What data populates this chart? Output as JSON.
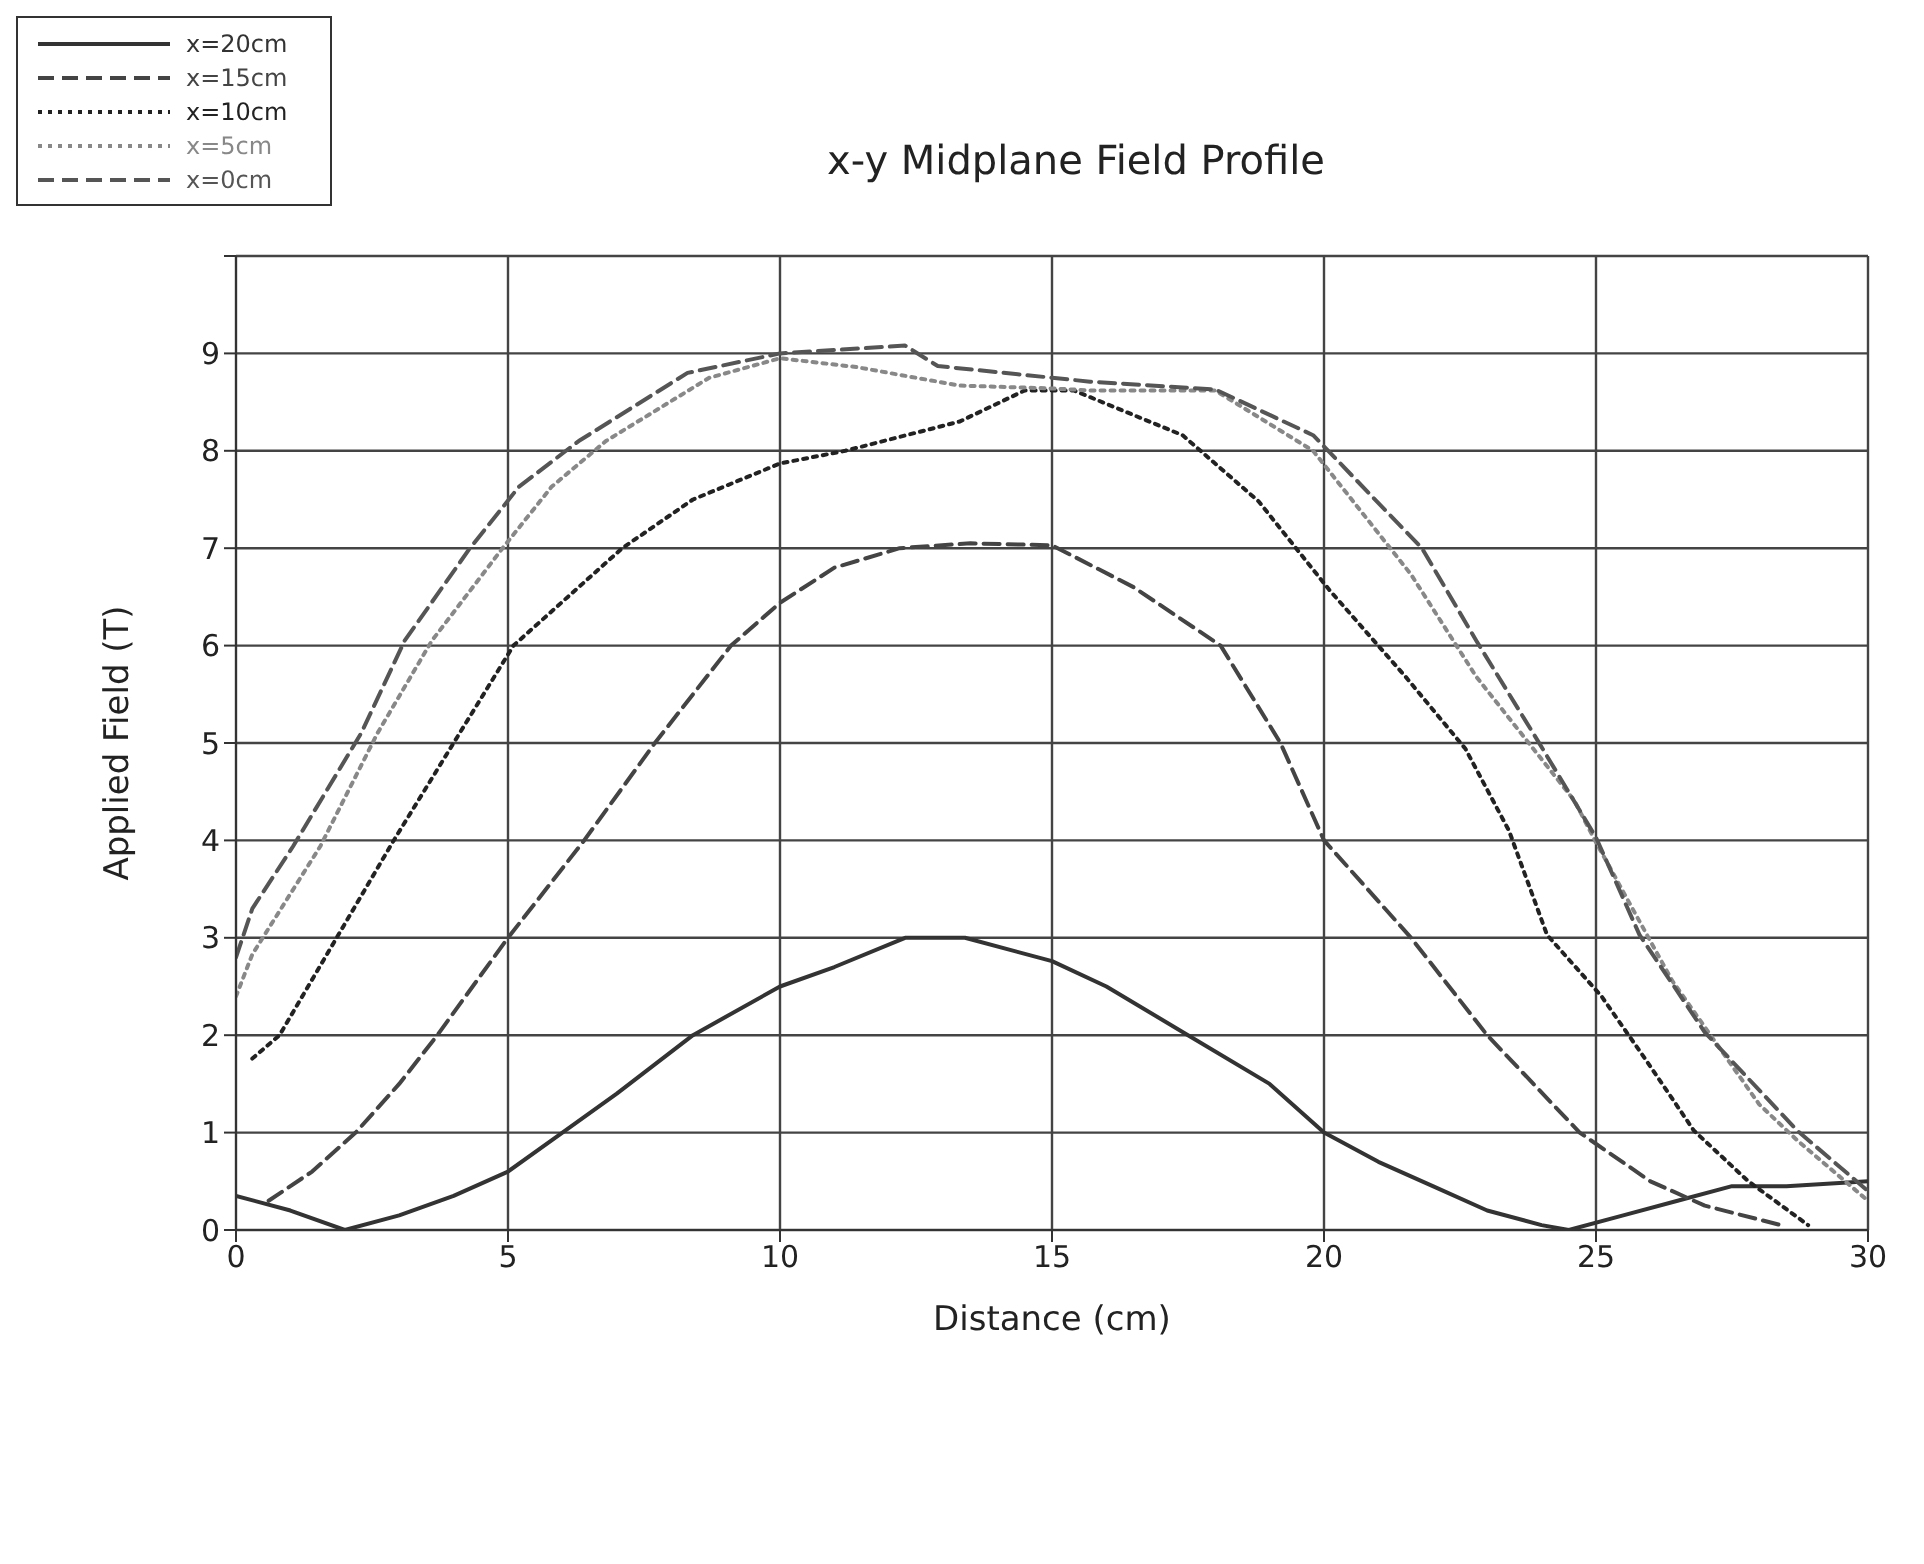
{
  "chart_data": {
    "type": "line",
    "title": "x-y Midplane Field Profile",
    "xlabel": "Distance (cm)",
    "ylabel": "Applied Field (T)",
    "xlim": [
      0,
      30
    ],
    "xticks": [
      0,
      5,
      10,
      15,
      20,
      25,
      30
    ],
    "ylim": [
      0,
      10
    ],
    "yticks": [
      0,
      1,
      2,
      3,
      4,
      5,
      6,
      7,
      8,
      9,
      {
        "value": 10,
        "label": null
      }
    ],
    "grid": true,
    "legend": "top left",
    "marker": "none",
    "series": [
      {
        "name": "x=20cm",
        "color": "#333333",
        "line_style": "solid",
        "x": [
          0,
          1,
          2,
          3,
          4,
          5,
          6,
          7,
          8.4,
          10,
          11,
          12.3,
          13.4,
          15,
          16,
          17.5,
          19,
          20,
          21,
          22,
          23,
          24,
          24.5,
          25.5,
          26.5,
          27.5,
          28.5,
          30
        ],
        "values": [
          0.35,
          0.2,
          0,
          0.15,
          0.35,
          0.6,
          1,
          1.4,
          2,
          2.5,
          2.7,
          3,
          3,
          2.76,
          2.5,
          2,
          1.5,
          1,
          0.7,
          0.45,
          0.2,
          0.05,
          0,
          0.15,
          0.3,
          0.45,
          0.45,
          0.5
        ]
      },
      {
        "name": "x=15cm",
        "color": "#444444",
        "line_style": "dashed",
        "x": [
          0.6,
          1.4,
          2.2,
          3,
          3.7,
          5,
          6.4,
          7.7,
          9.1,
          10,
          11,
          12.2,
          13.5,
          15,
          16.5,
          18.1,
          19.2,
          20,
          21.6,
          23,
          24.7,
          26,
          27,
          28.4
        ],
        "values": [
          0.3,
          0.6,
          1,
          1.5,
          2,
          3,
          4,
          5,
          6,
          6.44,
          6.8,
          7,
          7.05,
          7.03,
          6.6,
          6,
          5,
          4,
          3,
          2,
          1,
          0.5,
          0.25,
          0.05
        ]
      },
      {
        "name": "x=10cm",
        "color": "#222222",
        "line_style": "dotted",
        "x": [
          0.3,
          0.8,
          1.85,
          2.9,
          4,
          5.1,
          6.1,
          7.1,
          8.4,
          10,
          11.2,
          13.3,
          14.5,
          15.4,
          17.4,
          18.8,
          20.1,
          21.5,
          22.6,
          23.4,
          24.1,
          25.1,
          25.9,
          26.8,
          27.8,
          28.9
        ],
        "values": [
          1.76,
          2,
          3,
          4,
          5,
          6,
          6.5,
          7,
          7.5,
          7.87,
          8,
          8.3,
          8.62,
          8.62,
          8.16,
          7.48,
          6.57,
          5.68,
          4.94,
          4.1,
          3.03,
          2.4,
          1.76,
          1.02,
          0.5,
          0.05
        ]
      },
      {
        "name": "x=5cm",
        "color": "#888888",
        "line_style": "dotted",
        "x": [
          0,
          0.3,
          1.55,
          2.6,
          3.6,
          4.9,
          5.8,
          6.8,
          8.7,
          10,
          11.4,
          13.3,
          15,
          15.7,
          18,
          19.8,
          21.6,
          22.8,
          24.6,
          25,
          26.4,
          28,
          28.7,
          30
        ],
        "values": [
          2.4,
          2.83,
          3.94,
          5.1,
          6.05,
          7,
          7.63,
          8.1,
          8.75,
          8.95,
          8.86,
          8.67,
          8.64,
          8.62,
          8.62,
          8,
          6.73,
          5.68,
          4.41,
          3.98,
          2.56,
          1.29,
          0.92,
          0.3
        ]
      },
      {
        "name": "x=0cm",
        "color": "#555555",
        "line_style": "dashed",
        "x": [
          0,
          0.3,
          1.05,
          2.3,
          3.1,
          4.3,
          5.2,
          6.3,
          8.3,
          10,
          12.3,
          12.9,
          15,
          15.7,
          18,
          19.8,
          21.8,
          22.8,
          23.9,
          25,
          25.8,
          27,
          28.7,
          30
        ],
        "values": [
          2.8,
          3.3,
          3.94,
          5.1,
          6.05,
          7,
          7.63,
          8.1,
          8.8,
          9,
          9.08,
          8.87,
          8.75,
          8.71,
          8.63,
          8.16,
          7,
          6.05,
          5.05,
          4.03,
          3.03,
          2.03,
          1.02,
          0.4
        ]
      }
    ]
  }
}
